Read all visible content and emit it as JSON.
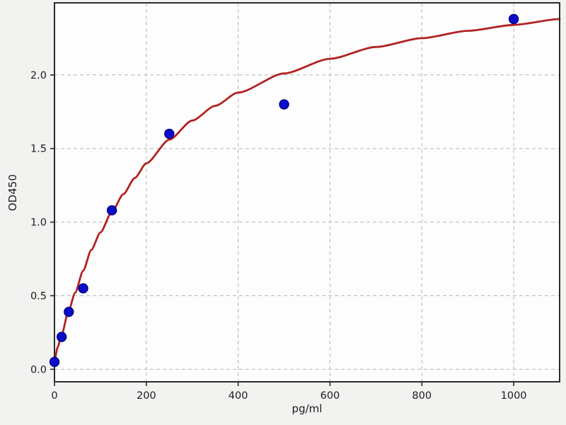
{
  "chart_data": {
    "type": "scatter",
    "title": "",
    "xlabel": "pg/ml",
    "ylabel": "OD450",
    "xlim": [
      0,
      1100
    ],
    "ylim": [
      -0.085,
      2.49
    ],
    "x_ticks": {
      "values": [
        0,
        200,
        400,
        600,
        800,
        1000
      ],
      "labels": [
        "0",
        "200",
        "400",
        "600",
        "800",
        "1000"
      ]
    },
    "y_ticks": {
      "values": [
        0,
        0.5,
        1.0,
        1.5,
        2.0
      ],
      "labels": [
        "0.0",
        "0.5",
        "1.0",
        "1.5",
        "2.0"
      ]
    },
    "grid": {
      "on": true,
      "style": "dashed",
      "color": "#b5b5b5"
    },
    "legend": "none",
    "series": [
      {
        "name": "standard-points",
        "type": "scatter",
        "marker": "circle",
        "color": "#0b0bc8",
        "edge_color": "#00007a",
        "x": [
          0,
          15.6,
          31.25,
          62.5,
          125,
          250,
          500,
          1000
        ],
        "y": [
          0.05,
          0.22,
          0.39,
          0.55,
          1.08,
          1.6,
          1.8,
          2.38
        ]
      },
      {
        "name": "fit-curve",
        "type": "line",
        "color": "#b22222",
        "x": [
          0,
          7,
          15,
          31,
          45,
          62.5,
          80,
          100,
          125,
          150,
          175,
          200,
          250,
          300,
          350,
          400,
          500,
          600,
          700,
          800,
          900,
          1000,
          1100
        ],
        "y": [
          0.06,
          0.15,
          0.23,
          0.4,
          0.52,
          0.67,
          0.81,
          0.93,
          1.07,
          1.19,
          1.3,
          1.4,
          1.56,
          1.69,
          1.79,
          1.88,
          2.01,
          2.11,
          2.19,
          2.25,
          2.3,
          2.34,
          2.38
        ]
      }
    ],
    "colors": {
      "figure_bg": "#f2f2f0",
      "plot_bg": "#fdfdfd",
      "spine": "#2b2b2b",
      "tick_label": "#1c1c1c"
    }
  }
}
